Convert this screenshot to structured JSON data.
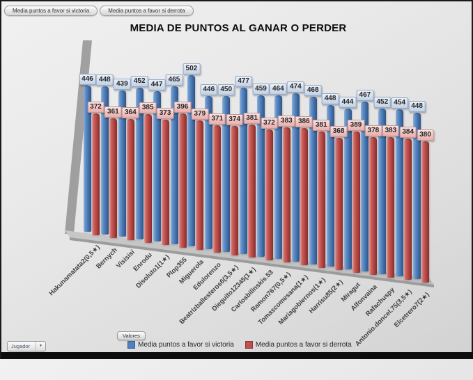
{
  "filter_buttons": [
    {
      "label": "Media puntos a favor si victoria"
    },
    {
      "label": "Media puntos a favor si derrota"
    }
  ],
  "chart_data": {
    "type": "bar",
    "style": "3d-cylinder-column",
    "title": "MEDIA DE PUNTOS AL GANAR O PERDER",
    "categories": [
      "Hakunamatata2(0,5★)",
      "Bernych",
      "Visisisi",
      "Enrodu",
      "Disoluto1(1★)",
      "Plop355",
      "Miguerola",
      "Edulorenzo",
      "Beatrizballesteros6(3,5★)",
      "Dieguito12345(1★)",
      "Carlosbilinskis.53",
      "Ramon767(0,5★)",
      "Tomascomesana(1★)",
      "Mariagobiernos(1★)",
      "Harrisu85(2★)",
      "Miragut",
      "Alfonvaina",
      "Rafachuspy",
      "Antonio.doncel.75(3,5★)",
      "Elcetrero7(2★)"
    ],
    "series": [
      {
        "name": "Media puntos a favor si victoria",
        "color": "#4F81BD",
        "values": [
          446,
          448,
          439,
          452,
          447,
          465,
          502,
          446,
          450,
          477,
          459,
          464,
          474,
          468,
          448,
          444,
          467,
          452,
          454,
          448
        ]
      },
      {
        "name": "Media puntos a favor si derrota",
        "color": "#C0504D",
        "values": [
          372,
          361,
          364,
          385,
          373,
          396,
          379,
          371,
          374,
          381,
          372,
          383,
          386,
          381,
          368,
          389,
          378,
          383,
          384,
          380
        ]
      }
    ],
    "data_labels": true,
    "legend_position": "bottom",
    "value_axis_visible": false,
    "grid": false
  },
  "values_button": {
    "label": "Valores"
  },
  "field_dropdown": {
    "label": "Jugador"
  }
}
